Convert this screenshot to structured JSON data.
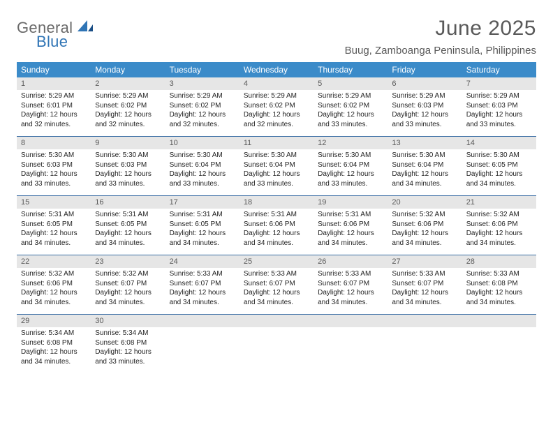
{
  "logo": {
    "general": "General",
    "blue": "Blue"
  },
  "header": {
    "title": "June 2025",
    "location": "Buug, Zamboanga Peninsula, Philippines"
  },
  "colors": {
    "header_bg": "#3b8bc9",
    "header_text": "#ffffff",
    "daynum_bg": "#e6e6e6",
    "daynum_text": "#5a5a5a",
    "rule": "#3b6ea5",
    "title_text": "#595959",
    "logo_gray": "#6a6a6a",
    "logo_blue": "#2f74b5"
  },
  "weekdays": [
    "Sunday",
    "Monday",
    "Tuesday",
    "Wednesday",
    "Thursday",
    "Friday",
    "Saturday"
  ],
  "weeks": [
    [
      {
        "n": "1",
        "sr": "Sunrise: 5:29 AM",
        "ss": "Sunset: 6:01 PM",
        "d1": "Daylight: 12 hours",
        "d2": "and 32 minutes."
      },
      {
        "n": "2",
        "sr": "Sunrise: 5:29 AM",
        "ss": "Sunset: 6:02 PM",
        "d1": "Daylight: 12 hours",
        "d2": "and 32 minutes."
      },
      {
        "n": "3",
        "sr": "Sunrise: 5:29 AM",
        "ss": "Sunset: 6:02 PM",
        "d1": "Daylight: 12 hours",
        "d2": "and 32 minutes."
      },
      {
        "n": "4",
        "sr": "Sunrise: 5:29 AM",
        "ss": "Sunset: 6:02 PM",
        "d1": "Daylight: 12 hours",
        "d2": "and 32 minutes."
      },
      {
        "n": "5",
        "sr": "Sunrise: 5:29 AM",
        "ss": "Sunset: 6:02 PM",
        "d1": "Daylight: 12 hours",
        "d2": "and 33 minutes."
      },
      {
        "n": "6",
        "sr": "Sunrise: 5:29 AM",
        "ss": "Sunset: 6:03 PM",
        "d1": "Daylight: 12 hours",
        "d2": "and 33 minutes."
      },
      {
        "n": "7",
        "sr": "Sunrise: 5:29 AM",
        "ss": "Sunset: 6:03 PM",
        "d1": "Daylight: 12 hours",
        "d2": "and 33 minutes."
      }
    ],
    [
      {
        "n": "8",
        "sr": "Sunrise: 5:30 AM",
        "ss": "Sunset: 6:03 PM",
        "d1": "Daylight: 12 hours",
        "d2": "and 33 minutes."
      },
      {
        "n": "9",
        "sr": "Sunrise: 5:30 AM",
        "ss": "Sunset: 6:03 PM",
        "d1": "Daylight: 12 hours",
        "d2": "and 33 minutes."
      },
      {
        "n": "10",
        "sr": "Sunrise: 5:30 AM",
        "ss": "Sunset: 6:04 PM",
        "d1": "Daylight: 12 hours",
        "d2": "and 33 minutes."
      },
      {
        "n": "11",
        "sr": "Sunrise: 5:30 AM",
        "ss": "Sunset: 6:04 PM",
        "d1": "Daylight: 12 hours",
        "d2": "and 33 minutes."
      },
      {
        "n": "12",
        "sr": "Sunrise: 5:30 AM",
        "ss": "Sunset: 6:04 PM",
        "d1": "Daylight: 12 hours",
        "d2": "and 33 minutes."
      },
      {
        "n": "13",
        "sr": "Sunrise: 5:30 AM",
        "ss": "Sunset: 6:04 PM",
        "d1": "Daylight: 12 hours",
        "d2": "and 34 minutes."
      },
      {
        "n": "14",
        "sr": "Sunrise: 5:30 AM",
        "ss": "Sunset: 6:05 PM",
        "d1": "Daylight: 12 hours",
        "d2": "and 34 minutes."
      }
    ],
    [
      {
        "n": "15",
        "sr": "Sunrise: 5:31 AM",
        "ss": "Sunset: 6:05 PM",
        "d1": "Daylight: 12 hours",
        "d2": "and 34 minutes."
      },
      {
        "n": "16",
        "sr": "Sunrise: 5:31 AM",
        "ss": "Sunset: 6:05 PM",
        "d1": "Daylight: 12 hours",
        "d2": "and 34 minutes."
      },
      {
        "n": "17",
        "sr": "Sunrise: 5:31 AM",
        "ss": "Sunset: 6:05 PM",
        "d1": "Daylight: 12 hours",
        "d2": "and 34 minutes."
      },
      {
        "n": "18",
        "sr": "Sunrise: 5:31 AM",
        "ss": "Sunset: 6:06 PM",
        "d1": "Daylight: 12 hours",
        "d2": "and 34 minutes."
      },
      {
        "n": "19",
        "sr": "Sunrise: 5:31 AM",
        "ss": "Sunset: 6:06 PM",
        "d1": "Daylight: 12 hours",
        "d2": "and 34 minutes."
      },
      {
        "n": "20",
        "sr": "Sunrise: 5:32 AM",
        "ss": "Sunset: 6:06 PM",
        "d1": "Daylight: 12 hours",
        "d2": "and 34 minutes."
      },
      {
        "n": "21",
        "sr": "Sunrise: 5:32 AM",
        "ss": "Sunset: 6:06 PM",
        "d1": "Daylight: 12 hours",
        "d2": "and 34 minutes."
      }
    ],
    [
      {
        "n": "22",
        "sr": "Sunrise: 5:32 AM",
        "ss": "Sunset: 6:06 PM",
        "d1": "Daylight: 12 hours",
        "d2": "and 34 minutes."
      },
      {
        "n": "23",
        "sr": "Sunrise: 5:32 AM",
        "ss": "Sunset: 6:07 PM",
        "d1": "Daylight: 12 hours",
        "d2": "and 34 minutes."
      },
      {
        "n": "24",
        "sr": "Sunrise: 5:33 AM",
        "ss": "Sunset: 6:07 PM",
        "d1": "Daylight: 12 hours",
        "d2": "and 34 minutes."
      },
      {
        "n": "25",
        "sr": "Sunrise: 5:33 AM",
        "ss": "Sunset: 6:07 PM",
        "d1": "Daylight: 12 hours",
        "d2": "and 34 minutes."
      },
      {
        "n": "26",
        "sr": "Sunrise: 5:33 AM",
        "ss": "Sunset: 6:07 PM",
        "d1": "Daylight: 12 hours",
        "d2": "and 34 minutes."
      },
      {
        "n": "27",
        "sr": "Sunrise: 5:33 AM",
        "ss": "Sunset: 6:07 PM",
        "d1": "Daylight: 12 hours",
        "d2": "and 34 minutes."
      },
      {
        "n": "28",
        "sr": "Sunrise: 5:33 AM",
        "ss": "Sunset: 6:08 PM",
        "d1": "Daylight: 12 hours",
        "d2": "and 34 minutes."
      }
    ],
    [
      {
        "n": "29",
        "sr": "Sunrise: 5:34 AM",
        "ss": "Sunset: 6:08 PM",
        "d1": "Daylight: 12 hours",
        "d2": "and 34 minutes."
      },
      {
        "n": "30",
        "sr": "Sunrise: 5:34 AM",
        "ss": "Sunset: 6:08 PM",
        "d1": "Daylight: 12 hours",
        "d2": "and 33 minutes."
      },
      {
        "empty": true
      },
      {
        "empty": true
      },
      {
        "empty": true
      },
      {
        "empty": true
      },
      {
        "empty": true
      }
    ]
  ]
}
